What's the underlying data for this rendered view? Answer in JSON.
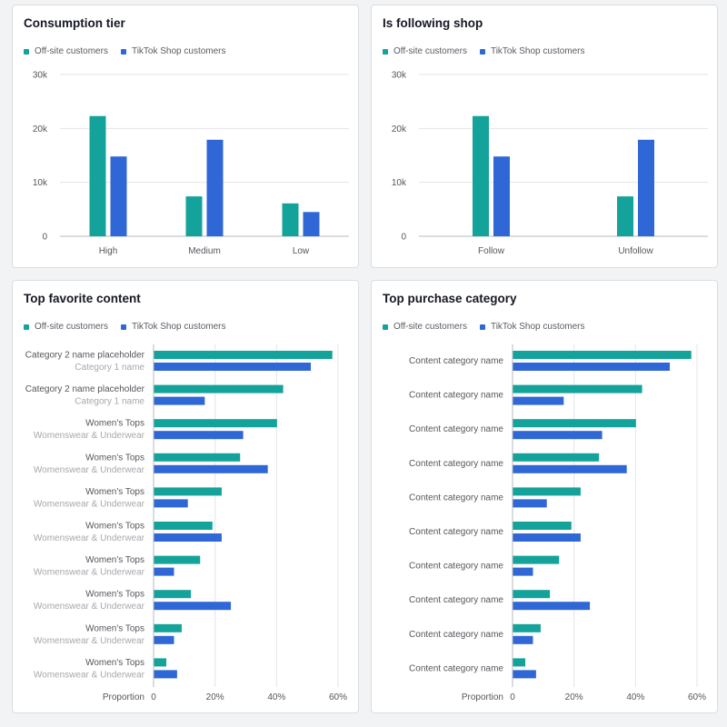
{
  "colors": {
    "offsite": "#14a39a",
    "tiktok": "#2f67d6",
    "grid": "#e4e5e8",
    "axis": "#b6b8bd",
    "label": "#55565c",
    "sublabel": "#a6a8ad"
  },
  "legend": {
    "offsite": "Off-site customers",
    "tiktok": "TikTok Shop customers"
  },
  "cards": {
    "consumption": {
      "title": "Consumption tier"
    },
    "following": {
      "title": "Is following shop"
    },
    "content": {
      "title": "Top favorite content",
      "xlabel": "Proportion"
    },
    "purchase": {
      "title": "Top purchase category",
      "xlabel": "Proportion"
    }
  },
  "chart_data": [
    {
      "type": "bar",
      "title": "Consumption tier",
      "categories": [
        "High",
        "Medium",
        "Low"
      ],
      "series": [
        {
          "name": "Off-site customers",
          "values": [
            22300,
            7400,
            6100
          ]
        },
        {
          "name": "TikTok Shop customers",
          "values": [
            14800,
            17900,
            4500
          ]
        }
      ],
      "yticks": [
        "0",
        "10k",
        "20k",
        "30k"
      ],
      "ylim": [
        0,
        30000
      ],
      "grid": true,
      "legend": "top-left"
    },
    {
      "type": "bar",
      "title": "Is following shop",
      "categories": [
        "Follow",
        "Unfollow"
      ],
      "series": [
        {
          "name": "Off-site customers",
          "values": [
            22300,
            7400
          ]
        },
        {
          "name": "TikTok Shop customers",
          "values": [
            14800,
            17900
          ]
        }
      ],
      "yticks": [
        "0",
        "10k",
        "20k",
        "30k"
      ],
      "ylim": [
        0,
        30000
      ],
      "grid": true,
      "legend": "top-left"
    },
    {
      "type": "bar",
      "orientation": "horizontal",
      "title": "Top favorite content",
      "xlabel": "Proportion",
      "categories": [
        [
          "Category 2 name placeholder",
          "Category 1 name"
        ],
        [
          "Category 2 name placeholder",
          "Category 1 name"
        ],
        [
          "Women's Tops",
          "Womenswear & Underwear"
        ],
        [
          "Women's Tops",
          "Womenswear & Underwear"
        ],
        [
          "Women's Tops",
          "Womenswear & Underwear"
        ],
        [
          "Women's Tops",
          "Womenswear & Underwear"
        ],
        [
          "Women's Tops",
          "Womenswear & Underwear"
        ],
        [
          "Women's Tops",
          "Womenswear & Underwear"
        ],
        [
          "Women's Tops",
          "Womenswear & Underwear"
        ],
        [
          "Women's Tops",
          "Womenswear & Underwear"
        ]
      ],
      "series": [
        {
          "name": "Off-site customers",
          "values": [
            58,
            42,
            40,
            28,
            22,
            19,
            15,
            12,
            9,
            4
          ]
        },
        {
          "name": "TikTok Shop customers",
          "values": [
            51,
            16.5,
            29,
            37,
            11,
            22,
            6.5,
            25,
            6.5,
            7.5
          ]
        }
      ],
      "xticks": [
        "0",
        "20%",
        "40%",
        "60%"
      ],
      "xlim": [
        0,
        60
      ],
      "grid": true,
      "legend": "top-left"
    },
    {
      "type": "bar",
      "orientation": "horizontal",
      "title": "Top purchase category",
      "xlabel": "Proportion",
      "categories": [
        "Content category name",
        "Content category name",
        "Content category name",
        "Content category name",
        "Content category name",
        "Content category name",
        "Content category name",
        "Content category name",
        "Content category name",
        "Content category name"
      ],
      "series": [
        {
          "name": "Off-site customers",
          "values": [
            58,
            42,
            40,
            28,
            22,
            19,
            15,
            12,
            9,
            4
          ]
        },
        {
          "name": "TikTok Shop customers",
          "values": [
            51,
            16.5,
            29,
            37,
            11,
            22,
            6.5,
            25,
            6.5,
            7.5
          ]
        }
      ],
      "xticks": [
        "0",
        "20%",
        "40%",
        "60%"
      ],
      "xlim": [
        0,
        60
      ],
      "grid": true,
      "legend": "top-left"
    }
  ]
}
